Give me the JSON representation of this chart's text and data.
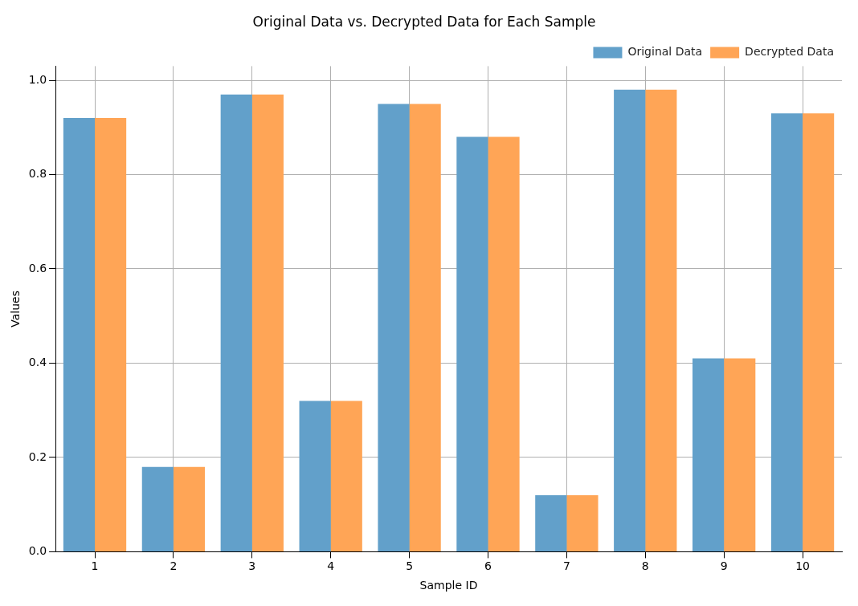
{
  "chart_data": {
    "type": "bar",
    "title": "Original Data vs. Decrypted Data for Each Sample",
    "xlabel": "Sample ID",
    "ylabel": "Values",
    "categories": [
      "1",
      "2",
      "3",
      "4",
      "5",
      "6",
      "7",
      "8",
      "9",
      "10"
    ],
    "series": [
      {
        "name": "Original Data",
        "color": "#62a0ca",
        "values": [
          0.92,
          0.18,
          0.97,
          0.32,
          0.95,
          0.88,
          0.12,
          0.98,
          0.41,
          0.93
        ]
      },
      {
        "name": "Decrypted Data",
        "color": "#ffa556",
        "values": [
          0.92,
          0.18,
          0.97,
          0.32,
          0.95,
          0.88,
          0.12,
          0.98,
          0.41,
          0.93
        ]
      }
    ],
    "ylim": [
      0,
      1.03
    ],
    "yticks": [
      {
        "value": 0,
        "label": "0.0"
      },
      0.2,
      0.4,
      0.6,
      0.8,
      {
        "value": 1,
        "label": "1.0"
      }
    ],
    "grid": true,
    "legend": "top right"
  }
}
